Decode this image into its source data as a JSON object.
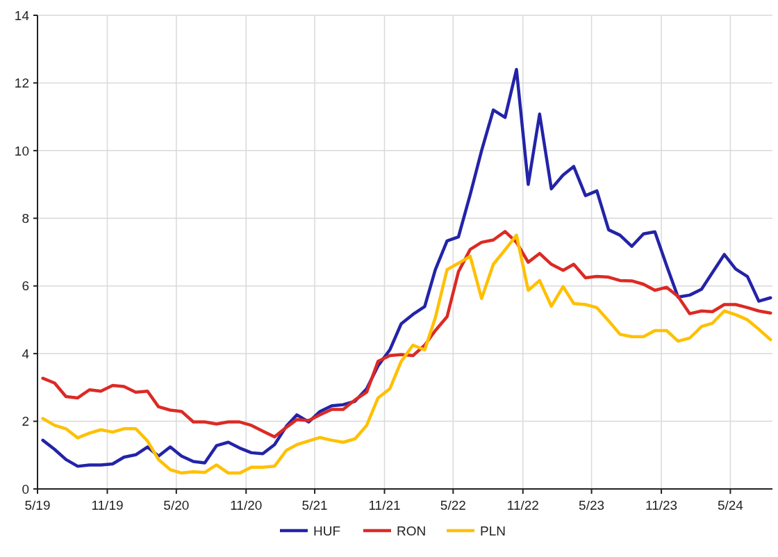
{
  "chart_data": {
    "type": "line",
    "x": [
      "2019-05-15",
      "2019-06-15",
      "2019-07-15",
      "2019-08-15",
      "2019-09-15",
      "2019-10-15",
      "2019-11-15",
      "2019-12-15",
      "2020-01-15",
      "2020-02-15",
      "2020-03-15",
      "2020-04-15",
      "2020-05-15",
      "2020-06-15",
      "2020-07-15",
      "2020-08-15",
      "2020-09-15",
      "2020-10-15",
      "2020-11-15",
      "2020-12-15",
      "2021-01-15",
      "2021-02-15",
      "2021-03-15",
      "2021-04-15",
      "2021-05-15",
      "2021-06-15",
      "2021-07-15",
      "2021-08-15",
      "2021-09-15",
      "2021-10-15",
      "2021-11-15",
      "2021-12-15",
      "2022-01-15",
      "2022-02-15",
      "2022-03-15",
      "2022-04-15",
      "2022-05-15",
      "2022-06-15",
      "2022-07-15",
      "2022-08-15",
      "2022-09-15",
      "2022-10-15",
      "2022-11-15",
      "2022-12-15",
      "2023-01-15",
      "2023-02-15",
      "2023-03-15",
      "2023-04-15",
      "2023-05-15",
      "2023-06-15",
      "2023-07-15",
      "2023-08-15",
      "2023-09-15",
      "2023-10-15",
      "2023-11-15",
      "2023-12-15",
      "2024-01-15",
      "2024-02-15",
      "2024-03-15",
      "2024-04-15",
      "2024-05-15",
      "2024-06-15",
      "2024-07-15",
      "2024-08-15"
    ],
    "series": [
      {
        "name": "HUF",
        "color": "#2323a8",
        "values": [
          1.44,
          1.17,
          0.87,
          0.67,
          0.71,
          0.71,
          0.74,
          0.94,
          1.01,
          1.24,
          0.97,
          1.24,
          0.97,
          0.81,
          0.77,
          1.28,
          1.38,
          1.21,
          1.07,
          1.04,
          1.31,
          1.85,
          2.19,
          1.98,
          2.29,
          2.46,
          2.49,
          2.59,
          2.96,
          3.64,
          4.11,
          4.88,
          5.16,
          5.39,
          6.48,
          7.33,
          7.45,
          8.7,
          10.0,
          11.2,
          10.98,
          12.4,
          9.0,
          11.08,
          8.87,
          9.28,
          9.53,
          8.67,
          8.81,
          7.66,
          7.5,
          7.17,
          7.54,
          7.6,
          6.6,
          5.67,
          5.73,
          5.9,
          6.4,
          6.93,
          6.5,
          6.28,
          5.55,
          5.65
        ]
      },
      {
        "name": "RON",
        "color": "#dc2a24",
        "values": [
          3.27,
          3.13,
          2.73,
          2.69,
          2.93,
          2.89,
          3.06,
          3.03,
          2.86,
          2.89,
          2.43,
          2.33,
          2.29,
          1.98,
          1.98,
          1.92,
          1.98,
          1.98,
          1.88,
          1.71,
          1.54,
          1.82,
          2.05,
          2.02,
          2.19,
          2.35,
          2.35,
          2.63,
          2.86,
          3.77,
          3.94,
          3.97,
          3.94,
          4.25,
          4.68,
          5.09,
          6.42,
          7.08,
          7.29,
          7.36,
          7.61,
          7.29,
          6.7,
          6.96,
          6.64,
          6.46,
          6.64,
          6.24,
          6.28,
          6.26,
          6.16,
          6.15,
          6.05,
          5.87,
          5.96,
          5.69,
          5.18,
          5.26,
          5.24,
          5.45,
          5.45,
          5.36,
          5.26,
          5.2
        ]
      },
      {
        "name": "PLN",
        "color": "#ffc000",
        "values": [
          2.08,
          1.88,
          1.78,
          1.51,
          1.65,
          1.75,
          1.68,
          1.78,
          1.78,
          1.42,
          0.87,
          0.57,
          0.47,
          0.51,
          0.49,
          0.71,
          0.47,
          0.47,
          0.64,
          0.64,
          0.67,
          1.14,
          1.31,
          1.42,
          1.52,
          1.44,
          1.38,
          1.48,
          1.88,
          2.69,
          2.96,
          3.77,
          4.25,
          4.11,
          5.06,
          6.48,
          6.67,
          6.88,
          5.63,
          6.64,
          7.07,
          7.5,
          5.87,
          6.16,
          5.4,
          5.98,
          5.48,
          5.45,
          5.36,
          4.97,
          4.57,
          4.5,
          4.5,
          4.68,
          4.68,
          4.37,
          4.46,
          4.8,
          4.9,
          5.26,
          5.15,
          5.0,
          4.72,
          4.41
        ]
      }
    ],
    "xlim": [
      "2019-05-01",
      "2024-08-20"
    ],
    "xticks": [
      {
        "value": "2019-05-01",
        "label": "5/19"
      },
      {
        "value": "2019-11-01",
        "label": "11/19"
      },
      {
        "value": "2020-05-01",
        "label": "5/20"
      },
      {
        "value": "2020-11-01",
        "label": "11/20"
      },
      {
        "value": "2021-05-01",
        "label": "5/21"
      },
      {
        "value": "2021-11-01",
        "label": "11/21"
      },
      {
        "value": "2022-05-01",
        "label": "5/22"
      },
      {
        "value": "2022-11-01",
        "label": "11/22"
      },
      {
        "value": "2023-05-01",
        "label": "5/23"
      },
      {
        "value": "2023-11-01",
        "label": "11/23"
      },
      {
        "value": "2024-05-01",
        "label": "5/24"
      }
    ],
    "ylim": [
      0,
      14
    ],
    "yticks": [
      0,
      2,
      4,
      6,
      8,
      10,
      12,
      14
    ],
    "grid": true,
    "legend": "bottom",
    "line_style": "solid",
    "marker": "none"
  }
}
